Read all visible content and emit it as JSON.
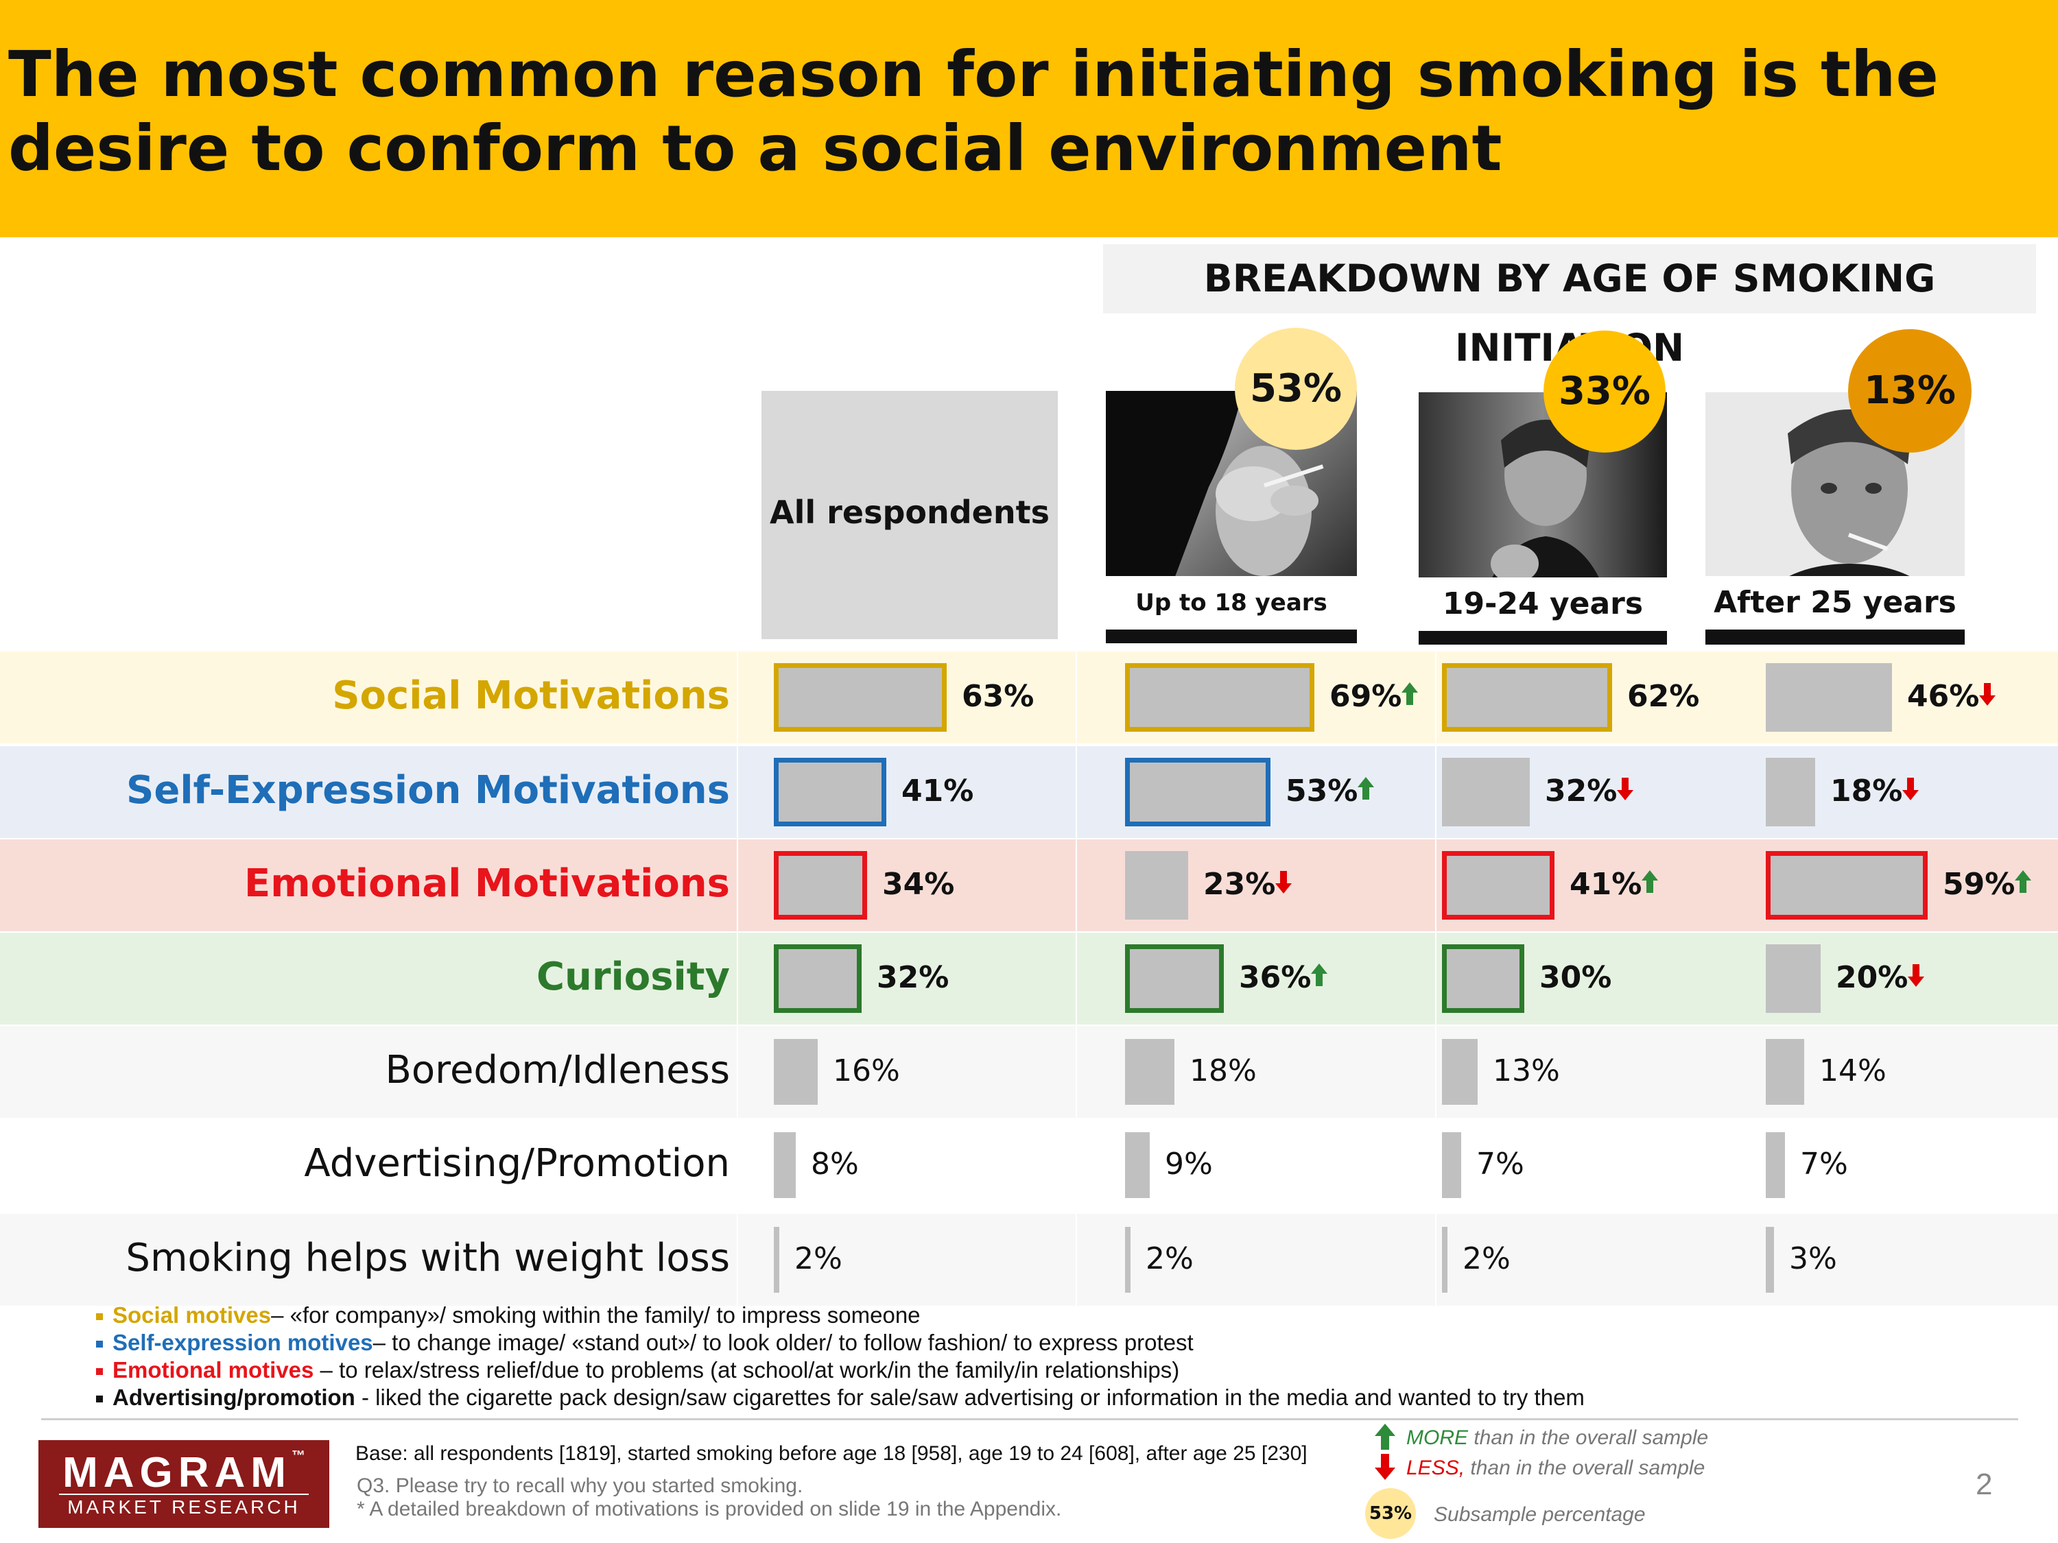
{
  "title": "The most common reason for initiating smoking is the desire to conform to a social environment",
  "breakdown_heading": "BREAKDOWN BY AGE OF SMOKING INITIATION",
  "colors": {
    "title_band": "#FFC000",
    "social": "#D4A600",
    "self_expression": "#1F6EB8",
    "emotional": "#E8141B",
    "curiosity": "#2C7A2C",
    "bar_fill": "#C0C0C0",
    "up_arrow": "#2E8B3A",
    "down_arrow": "#E00000",
    "logo": "#8B1A1A"
  },
  "chart_data": {
    "type": "bar",
    "orientation": "horizontal",
    "columns": [
      {
        "label": "All respondents",
        "subsample_pct": ""
      },
      {
        "label": "Up to 18 years",
        "subsample_pct": "53%"
      },
      {
        "label": "19-24 years",
        "subsample_pct": "33%"
      },
      {
        "label": "After 25 years",
        "subsample_pct": "13%"
      }
    ],
    "categories": [
      "Social Motivations",
      "Self-Expression Motivations",
      "Emotional Motivations",
      "Curiosity",
      "Boredom/Idleness",
      "Advertising/Promotion",
      "Smoking helps with weight loss"
    ],
    "series": [
      {
        "name": "All respondents",
        "values": [
          63,
          41,
          34,
          32,
          16,
          8,
          2
        ],
        "labels": [
          "63%",
          "41%",
          "34%",
          "32%",
          "16%",
          "8%",
          "2%"
        ],
        "arrows": [
          "",
          "",
          "",
          "",
          "",
          "",
          ""
        ]
      },
      {
        "name": "Up to 18 years",
        "values": [
          69,
          53,
          23,
          36,
          18,
          9,
          2
        ],
        "labels": [
          "69%",
          "53%",
          "23%",
          "36%",
          "18%",
          "9%",
          "2%"
        ],
        "arrows": [
          "up",
          "up",
          "down",
          "up",
          "",
          "",
          ""
        ]
      },
      {
        "name": "19-24 years",
        "values": [
          62,
          32,
          41,
          30,
          13,
          7,
          2
        ],
        "labels": [
          "62%",
          "32%",
          "41%",
          "30%",
          "13%",
          "7%",
          "2%"
        ],
        "arrows": [
          "",
          "down",
          "up",
          "",
          "",
          "",
          ""
        ]
      },
      {
        "name": "After 25 years",
        "values": [
          46,
          18,
          59,
          20,
          14,
          7,
          3
        ],
        "labels": [
          "46%",
          "18%",
          "59%",
          "20%",
          "14%",
          "7%",
          "3%"
        ],
        "arrows": [
          "down",
          "down",
          "up",
          "down",
          "",
          "",
          ""
        ]
      }
    ]
  },
  "definitions": [
    {
      "term": "Social motives",
      "text": "– «for company»/ smoking within the family/ to impress someone",
      "color": "#D4A600"
    },
    {
      "term": "Self-expression motives",
      "text": "– to change image/ «stand out»/ to look older/ to follow fashion/ to express protest",
      "color": "#1F6EB8"
    },
    {
      "term": "Emotional motives",
      "text": " – to relax/stress relief/due to problems (at school/at work/in the family/in relationships)",
      "color": "#E8141B"
    },
    {
      "term": "Advertising/promotion",
      "text": " - liked the cigarette pack design/saw cigarettes for sale/saw advertising or information in the media and wanted to try them",
      "color": "#111111"
    }
  ],
  "footer": {
    "base": "Base: all respondents [1819], started smoking before age 18 [958], age 19 to 24 [608], after age 25 [230]",
    "question": "Q3. Please try to recall why you started smoking.",
    "note": "* A detailed breakdown of motivations is provided on slide 19 in the Appendix.",
    "page_number": "2"
  },
  "legend": {
    "more_word": "MORE",
    "more_text": " than in the overall sample",
    "less_word": "LESS,",
    "less_text": " than in the overall sample",
    "circle_value": "53%",
    "circle_text": "Subsample percentage"
  },
  "logo": {
    "main": "MAGRAM",
    "tm": "™",
    "sub": "MARKET RESEARCH"
  }
}
